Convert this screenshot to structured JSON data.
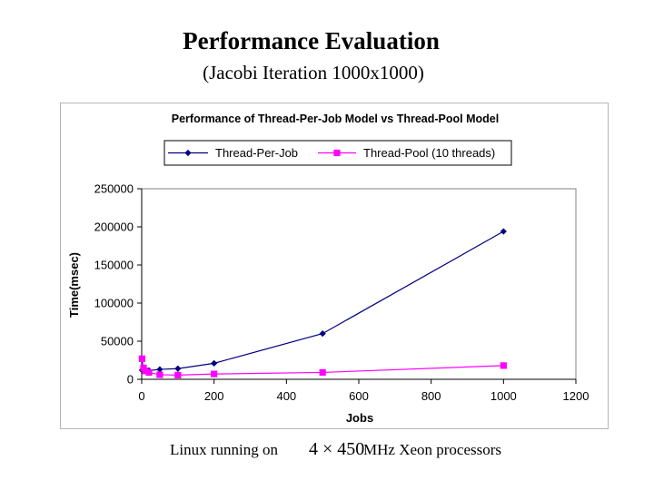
{
  "slide": {
    "title": "Performance Evaluation",
    "subtitle": "(Jacobi Iteration 1000x1000)",
    "caption_prefix": "Linux running on",
    "caption_formula": "4 × 450",
    "caption_suffix": "MHz  Xeon processors"
  },
  "chart_data": {
    "type": "line",
    "title": "Performance of Thread-Per-Job Model vs Thread-Pool Model",
    "xlabel": "Jobs",
    "ylabel": "Time(msec)",
    "xlim": [
      0,
      1200
    ],
    "ylim": [
      0,
      250000
    ],
    "xticks": [
      0,
      200,
      400,
      600,
      800,
      1000,
      1200
    ],
    "yticks": [
      0,
      50000,
      100000,
      150000,
      200000,
      250000
    ],
    "legend_position": "top",
    "grid": false,
    "series": [
      {
        "name": "Thread-Per-Job",
        "color": "#000080",
        "marker": "diamond",
        "x": [
          1,
          5,
          10,
          20,
          50,
          100,
          200,
          500,
          1000
        ],
        "y": [
          12000,
          11000,
          12000,
          11500,
          13000,
          14000,
          21000,
          60000,
          194000
        ]
      },
      {
        "name": "Thread-Pool (10 threads)",
        "color": "#ff00ff",
        "marker": "square",
        "x": [
          1,
          5,
          10,
          20,
          50,
          100,
          200,
          500,
          1000
        ],
        "y": [
          27000,
          15000,
          11000,
          9000,
          6000,
          5500,
          7000,
          9000,
          18000
        ]
      }
    ]
  }
}
